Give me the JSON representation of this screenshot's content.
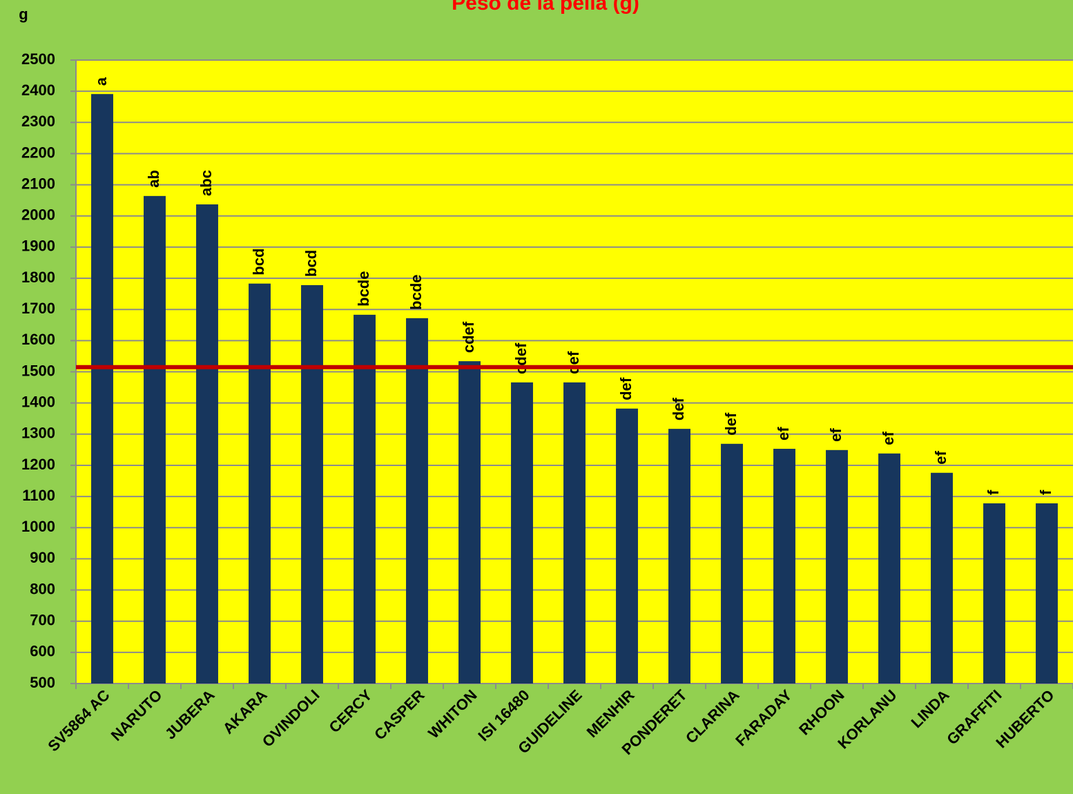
{
  "chart_data": {
    "type": "bar",
    "title": "Peso de la pella  (g)",
    "y_label": "g",
    "categories": [
      "SV5864 AC",
      "NARUTO",
      "JUBERA",
      "AKARA",
      "OVINDOLI",
      "CERCY",
      "CASPER",
      "WHITON",
      "ISI 16480",
      "GUIDELINE",
      "MENHIR",
      "PONDERET",
      "CLARINA",
      "FARADAY",
      "RHOON",
      "KORLANU",
      "LINDA",
      "GRAFFITI",
      "HUBERTO"
    ],
    "values": [
      2391,
      2064,
      2037,
      1783,
      1778,
      1683,
      1672,
      1534,
      1466,
      1466,
      1382,
      1317,
      1269,
      1253,
      1249,
      1238,
      1176,
      1078,
      1078
    ],
    "annotations": [
      "a",
      "ab",
      "abc",
      "bcd",
      "bcd",
      "bcde",
      "bcde",
      "cdef",
      "cdef",
      "def",
      "def",
      "def",
      "def",
      "ef",
      "ef",
      "ef",
      "ef",
      "f",
      "f"
    ],
    "color": "#17365d",
    "reference_line": 1515,
    "reference_color": "#c00000",
    "ylim": [
      500,
      2500
    ],
    "yticks": [
      500,
      600,
      700,
      800,
      900,
      1000,
      1100,
      1200,
      1300,
      1400,
      1500,
      1600,
      1700,
      1800,
      1900,
      2000,
      2100,
      2200,
      2300,
      2400,
      2500
    ],
    "grid": true
  }
}
